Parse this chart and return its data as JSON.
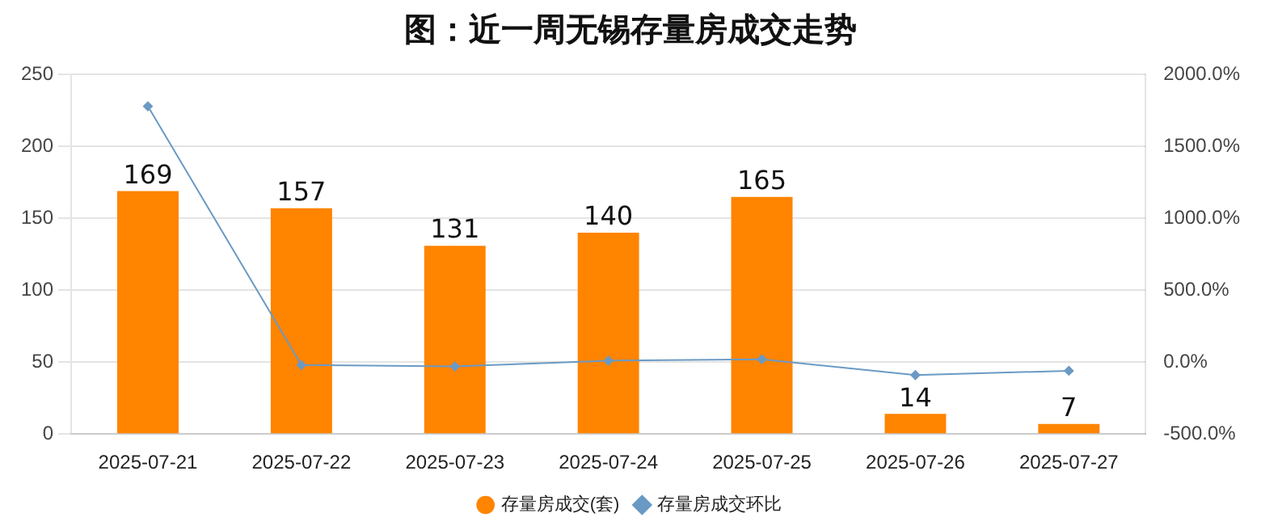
{
  "chart_data": {
    "type": "bar",
    "title": "图：近一周无锡存量房成交走势",
    "categories": [
      "2025-07-21",
      "2025-07-22",
      "2025-07-23",
      "2025-07-24",
      "2025-07-25",
      "2025-07-26",
      "2025-07-27"
    ],
    "series": [
      {
        "name": "存量房成交(套)",
        "color": "#ff8400",
        "values": [
          169,
          157,
          131,
          140,
          165,
          14,
          7
        ],
        "value_labels": [
          "169",
          "157",
          "131",
          "140",
          "165",
          "14",
          "7"
        ]
      },
      {
        "name": "存量房成交环比",
        "type": "line",
        "axis": "y2",
        "color": "#6a9ac4",
        "marker": "diamond",
        "values": [
          1780,
          -20,
          -30,
          10,
          20,
          -90,
          -60
        ]
      }
    ],
    "ylim": [
      0,
      250
    ],
    "yticks": [
      0,
      50,
      100,
      150,
      200,
      250
    ],
    "y2lim": [
      -500,
      2000
    ],
    "y2ticks": [
      {
        "value": -500,
        "label": "-500.0%"
      },
      {
        "value": 0,
        "label": "0.0%"
      },
      {
        "value": 500,
        "label": "500.0%"
      },
      {
        "value": 1000,
        "label": "1000.0%"
      },
      {
        "value": 1500,
        "label": "1500.0%"
      },
      {
        "value": 2000,
        "label": "2000.0%"
      }
    ],
    "grid": "y",
    "legend": "bottom"
  }
}
